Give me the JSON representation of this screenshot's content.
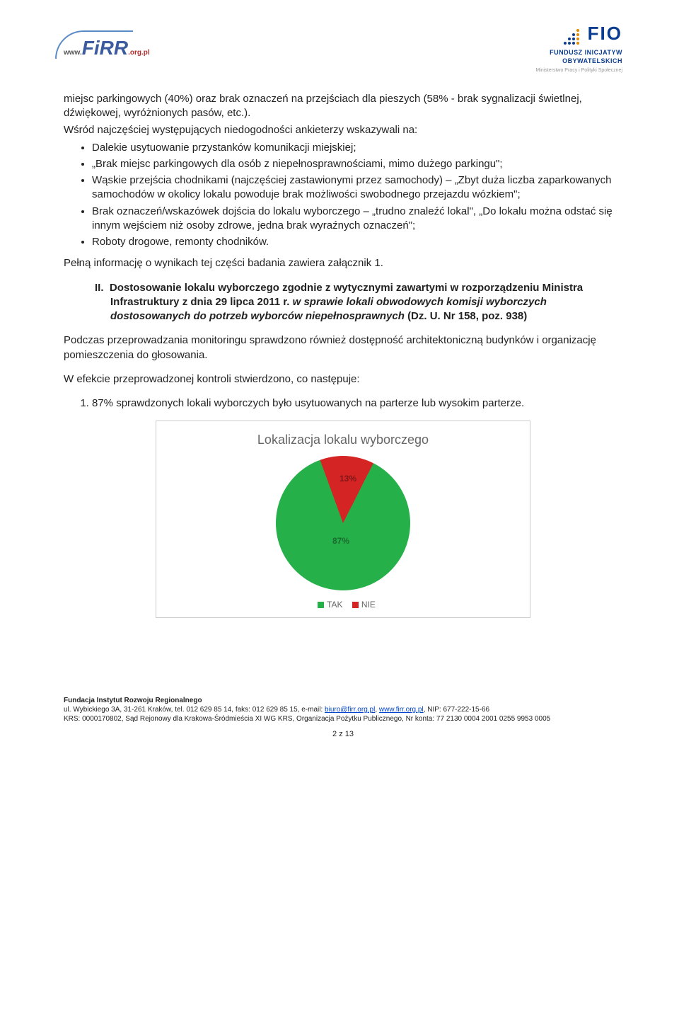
{
  "header": {
    "firr_text": "FiRR",
    "firr_www": "www.",
    "firr_org": ".org.pl",
    "fio_big": "FIO",
    "fio_line1": "FUNDUSZ INICJATYW",
    "fio_line2": "OBYWATELSKICH",
    "fio_min": "Ministerstwo Pracy i Polityki Społecznej"
  },
  "body": {
    "intro": "miejsc parkingowych (40%) oraz brak oznaczeń na przejściach dla pieszych (58% - brak sygnalizacji świetlnej, dźwiękowej, wyróżnionych pasów, etc.).",
    "wsrod": "Wśród najczęściej występujących niedogodności ankieterzy wskazywali na:",
    "bullets": [
      "Dalekie usytuowanie przystanków komunikacji miejskiej;",
      "„Brak miejsc parkingowych dla osób z niepełnosprawnościami, mimo dużego parkingu\";",
      "Wąskie przejścia chodnikami (najczęściej zastawionymi przez samochody) – „Zbyt duża liczba zaparkowanych samochodów w okolicy lokalu powoduje brak możliwości swobodnego przejazdu wózkiem\";",
      "Brak oznaczeń/wskazówek dojścia do lokalu wyborczego – „trudno znaleźć lokal\", „Do lokalu można odstać się innym wejściem niż osoby zdrowe, jedna brak wyraźnych oznaczeń\";",
      "Roboty drogowe, remonty chodników."
    ],
    "pelna": "Pełną informację o wynikach tej części badania zawiera załącznik 1.",
    "section2_num": "II.",
    "section2_title_a": "Dostosowanie lokalu wyborczego zgodnie z wytycznymi zawartymi w rozporządzeniu Ministra Infrastruktury z dnia 29 lipca 2011 r. ",
    "section2_title_b": "w sprawie lokali obwodowych komisji wyborczych dostosowanych do potrzeb wyborców niepełnosprawnych ",
    "section2_title_c": "(Dz. U. Nr 158, poz. 938)",
    "podczas": "Podczas przeprowadzania monitoringu sprawdzono również dostępność architektoniczną budynków i organizację pomieszczenia do głosowania.",
    "wefekcie": "W efekcie przeprowadzonej kontroli stwierdzono, co następuje:",
    "item1": "87% sprawdzonych lokali wyborczych było usytuowanych na parterze lub wysokim parterze."
  },
  "chart": {
    "type": "pie",
    "title": "Lokalizacja lokalu wyborczego",
    "slices": [
      {
        "label": "TAK",
        "value": 87,
        "color": "#26b04a",
        "text_color": "#1a6b2e"
      },
      {
        "label": "NIE",
        "value": 13,
        "color": "#d42424",
        "text_color": "#7e1818"
      }
    ],
    "label_87": "87%",
    "label_13": "13%",
    "legend_tak": "TAK",
    "legend_nie": "NIE",
    "background": "#ffffff",
    "border_color": "#cccccc",
    "title_color": "#666666",
    "title_fontsize": 18
  },
  "footer": {
    "l1a": "Fundacja Instytut Rozwoju Regionalnego",
    "l2a": "ul. Wybickiego 3A, 31-261 Kraków, tel. 012 629 85 14, faks: 012 629 85 15, e-mail: ",
    "l2_mail": "biuro@firr.org.pl",
    "l2b": ", ",
    "l2_web": "www.firr.org.pl",
    "l2c": ", NIP: 677-222-15-66",
    "l3": "KRS: 0000170802, Sąd Rejonowy dla Krakowa-Śródmieścia XI WG KRS,  Organizacja Pożytku Publicznego, Nr konta: 77 2130 0004 2001 0255 9953 0005",
    "page": "2 z 13"
  }
}
